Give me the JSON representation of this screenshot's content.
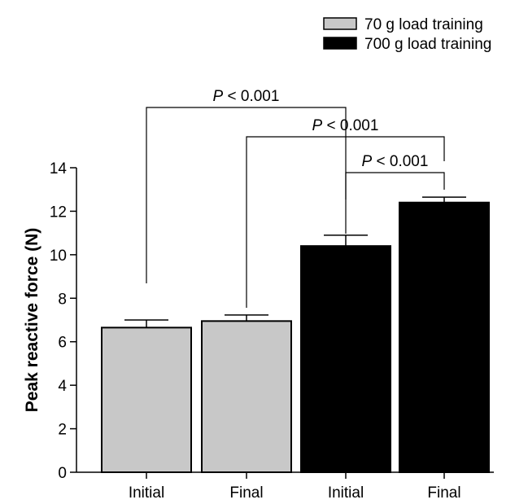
{
  "chart_data": {
    "type": "bar",
    "categories": [
      "Initial",
      "Final",
      "Initial",
      "Final"
    ],
    "values": [
      6.65,
      6.95,
      10.4,
      12.4
    ],
    "errors": [
      0.35,
      0.28,
      0.5,
      0.25
    ],
    "bar_colors": [
      "#c8c8c8",
      "#c8c8c8",
      "#000000",
      "#000000"
    ],
    "ylabel": "Peak reactive force (N)",
    "xlabel": "",
    "ylim": [
      0,
      14
    ],
    "yticks": [
      "0",
      "2",
      "4",
      "6",
      "8",
      "10",
      "12",
      "14"
    ],
    "grid": false,
    "legend": {
      "placement": "top-right",
      "items": [
        {
          "label": "70 g load training",
          "color": "#c8c8c8"
        },
        {
          "label": "700 g load training",
          "color": "#000000"
        }
      ]
    },
    "significance": [
      {
        "from": 0,
        "to": 2,
        "p": "P",
        "rest": " < 0.001"
      },
      {
        "from": 1,
        "to": 3,
        "p": "P",
        "rest": " < 0.001"
      },
      {
        "from": 2,
        "to": 3,
        "p": "P",
        "rest": " < 0.001"
      }
    ]
  }
}
